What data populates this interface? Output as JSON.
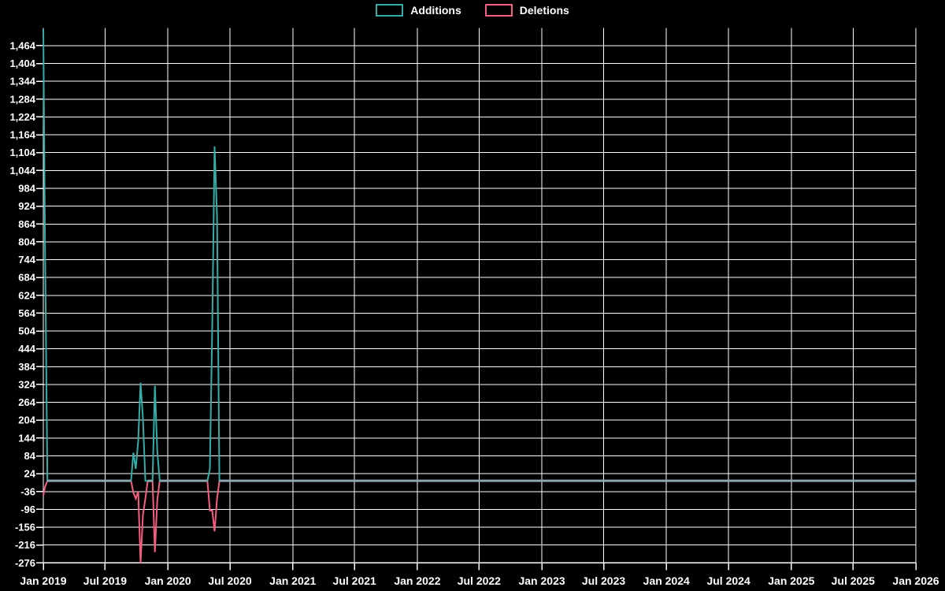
{
  "colors": {
    "background": "#000000",
    "grid": "#FFFFFF",
    "text": "#FFFFFF",
    "additions": "#31AEA7",
    "deletions": "#F85C7F",
    "zero_line_blend": "#8CA6B0"
  },
  "legend": {
    "items": [
      {
        "label": "Additions",
        "color": "#31AEA7"
      },
      {
        "label": "Deletions",
        "color": "#F85C7F"
      }
    ]
  },
  "chart_data": {
    "type": "line",
    "title": "",
    "xlabel": "",
    "ylabel": "",
    "grid": true,
    "legend_position": "top-center",
    "x_axis": {
      "start": "2019-01-01",
      "end": "2026-01-01",
      "tick_labels": [
        "Jan 2019",
        "Jul 2019",
        "Jan 2020",
        "Jul 2020",
        "Jan 2021",
        "Jul 2021",
        "Jan 2022",
        "Jul 2022",
        "Jan 2023",
        "Jul 2023",
        "Jan 2024",
        "Jul 2024",
        "Jan 2025",
        "Jul 2025",
        "Jan 2026"
      ]
    },
    "y_axis": {
      "min": -276,
      "max": 1524,
      "tick_step": 60,
      "tick_labels": [
        "1,464",
        "1,404",
        "1,344",
        "1,284",
        "1,224",
        "1,164",
        "1,104",
        "1,044",
        "984",
        "924",
        "864",
        "804",
        "744",
        "684",
        "624",
        "564",
        "504",
        "444",
        "384",
        "324",
        "264",
        "204",
        "144",
        "84",
        "24",
        "-36",
        "-96",
        "-156",
        "-216",
        "-276"
      ]
    },
    "series": [
      {
        "name": "Additions",
        "color": "#31AEA7",
        "points": [
          [
            "2019-01-01",
            1520
          ],
          [
            "2019-01-06",
            790
          ],
          [
            "2019-01-13",
            0
          ],
          [
            "2019-09-15",
            0
          ],
          [
            "2019-09-22",
            95
          ],
          [
            "2019-09-29",
            40
          ],
          [
            "2019-10-06",
            135
          ],
          [
            "2019-10-13",
            330
          ],
          [
            "2019-10-20",
            210
          ],
          [
            "2019-10-27",
            0
          ],
          [
            "2019-11-17",
            0
          ],
          [
            "2019-11-24",
            320
          ],
          [
            "2019-12-01",
            100
          ],
          [
            "2019-12-08",
            0
          ],
          [
            "2020-04-26",
            0
          ],
          [
            "2020-05-03",
            40
          ],
          [
            "2020-05-10",
            515
          ],
          [
            "2020-05-17",
            1125
          ],
          [
            "2020-05-24",
            890
          ],
          [
            "2020-05-31",
            0
          ],
          [
            "2026-01-01",
            0
          ]
        ]
      },
      {
        "name": "Deletions",
        "color": "#F85C7F",
        "points": [
          [
            "2019-01-01",
            -50
          ],
          [
            "2019-01-06",
            -20
          ],
          [
            "2019-01-13",
            0
          ],
          [
            "2019-09-15",
            0
          ],
          [
            "2019-09-22",
            -40
          ],
          [
            "2019-09-29",
            -60
          ],
          [
            "2019-10-06",
            -35
          ],
          [
            "2019-10-13",
            -276
          ],
          [
            "2019-10-20",
            -115
          ],
          [
            "2019-10-27",
            -60
          ],
          [
            "2019-11-03",
            0
          ],
          [
            "2019-11-17",
            0
          ],
          [
            "2019-11-24",
            -240
          ],
          [
            "2019-12-01",
            -65
          ],
          [
            "2019-12-08",
            0
          ],
          [
            "2020-04-26",
            0
          ],
          [
            "2020-05-03",
            -100
          ],
          [
            "2020-05-10",
            -100
          ],
          [
            "2020-05-17",
            -170
          ],
          [
            "2020-05-24",
            -60
          ],
          [
            "2020-05-31",
            0
          ],
          [
            "2026-01-01",
            0
          ]
        ]
      }
    ],
    "zero_overlap_ranges": [
      [
        "2019-01-13",
        "2019-09-15"
      ],
      [
        "2019-11-03",
        "2019-11-17"
      ],
      [
        "2019-12-08",
        "2020-04-26"
      ],
      [
        "2020-05-31",
        "2026-01-01"
      ]
    ]
  }
}
